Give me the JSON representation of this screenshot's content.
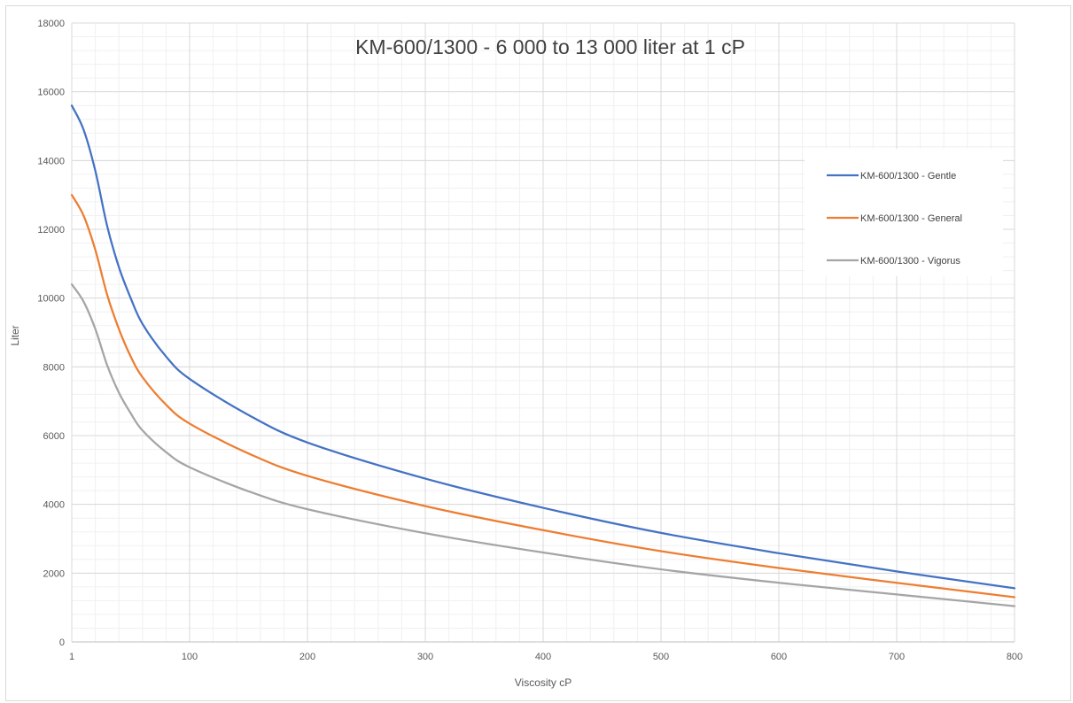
{
  "chart_data": {
    "type": "line",
    "title": "KM-600/1300 - 6 000 to 13 000 liter at 1 cP",
    "xlabel": "Viscosity cP",
    "ylabel": "Liter",
    "xlim": [
      0,
      800
    ],
    "ylim": [
      0,
      18000
    ],
    "xticks": [
      1,
      100,
      200,
      300,
      400,
      500,
      600,
      700,
      800
    ],
    "yticks": [
      0,
      2000,
      4000,
      6000,
      8000,
      10000,
      12000,
      14000,
      16000,
      18000
    ],
    "grid": true,
    "legend_position": "right",
    "x": [
      1,
      10,
      20,
      30,
      40,
      50,
      60,
      80,
      100,
      150,
      200,
      300,
      400,
      500,
      600,
      700,
      800
    ],
    "series": [
      {
        "name": "KM-600/1300 - Gentle",
        "color": "#4472c4",
        "values": [
          15600,
          14900,
          13700,
          12100,
          10900,
          10000,
          9250,
          8300,
          7650,
          6600,
          5800,
          4750,
          3900,
          3170,
          2580,
          2050,
          1560
        ]
      },
      {
        "name": "KM-600/1300 - General",
        "color": "#ed7d31",
        "values": [
          13000,
          12400,
          11400,
          10100,
          9100,
          8300,
          7700,
          6900,
          6350,
          5480,
          4830,
          3950,
          3250,
          2640,
          2150,
          1720,
          1300
        ]
      },
      {
        "name": "KM-600/1300 - Vigorus",
        "color": "#a5a5a5",
        "values": [
          10400,
          9900,
          9100,
          8050,
          7250,
          6650,
          6150,
          5520,
          5080,
          4380,
          3860,
          3160,
          2600,
          2110,
          1720,
          1380,
          1040
        ]
      }
    ]
  }
}
